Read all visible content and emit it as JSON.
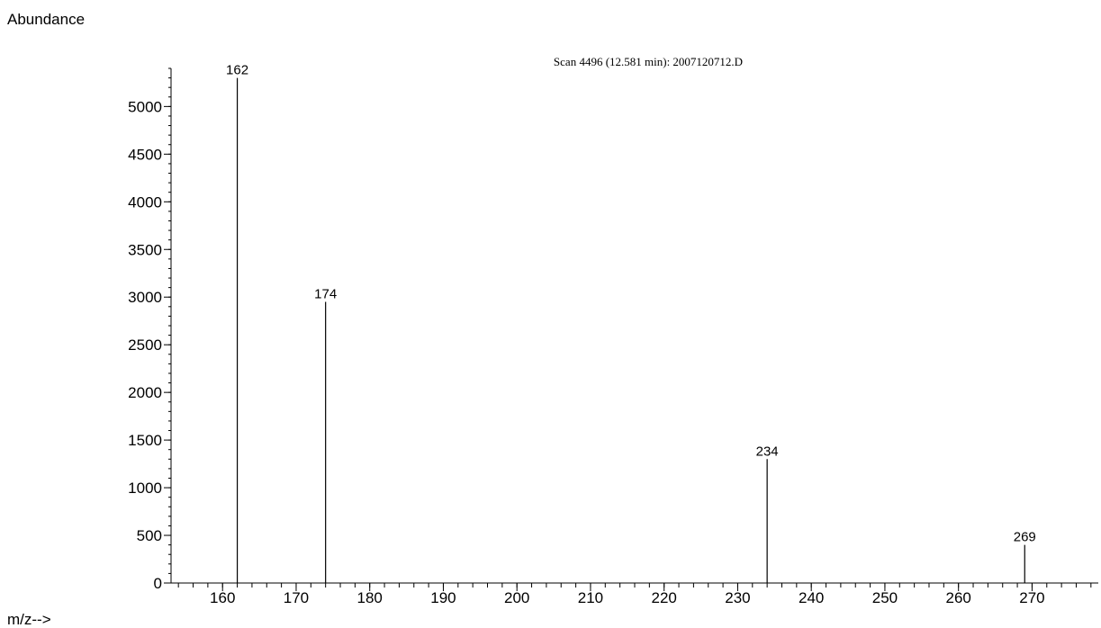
{
  "chart_data": {
    "type": "bar",
    "title": "Scan 4496 (12.581 min): 2007120712.D",
    "ylabel": "Abundance",
    "xlabel": "m/z-->",
    "xlim": [
      153,
      279
    ],
    "ylim": [
      0,
      5400
    ],
    "x_ticks": [
      160,
      170,
      180,
      190,
      200,
      210,
      220,
      230,
      240,
      250,
      260,
      270
    ],
    "y_ticks": [
      0,
      500,
      1000,
      1500,
      2000,
      2500,
      3000,
      3500,
      4000,
      4500,
      5000
    ],
    "peaks": [
      {
        "mz": 162,
        "abundance": 5300,
        "label": "162"
      },
      {
        "mz": 174,
        "abundance": 2950,
        "label": "174"
      },
      {
        "mz": 234,
        "abundance": 1300,
        "label": "234"
      },
      {
        "mz": 269,
        "abundance": 400,
        "label": "269"
      }
    ],
    "grid": false
  }
}
